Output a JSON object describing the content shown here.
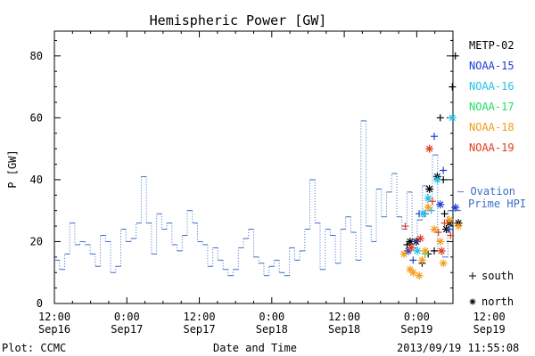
{
  "chart_data": {
    "type": "line",
    "title": "Hemispheric Power [GW]",
    "xlabel": "Date and Time",
    "ylabel": "P [GW]",
    "ylim": [
      0,
      88
    ],
    "xlim_hours": [
      0,
      66
    ],
    "y_ticks": [
      0,
      20,
      40,
      60,
      80
    ],
    "x_ticks": [
      {
        "h": 0,
        "time": "12:00",
        "date": "Sep16"
      },
      {
        "h": 12,
        "time": "0:00",
        "date": "Sep17"
      },
      {
        "h": 24,
        "time": "12:00",
        "date": "Sep17"
      },
      {
        "h": 36,
        "time": "0:00",
        "date": "Sep18"
      },
      {
        "h": 48,
        "time": "12:00",
        "date": "Sep18"
      },
      {
        "h": 60,
        "time": "0:00",
        "date": "Sep19"
      },
      {
        "h": 72,
        "time": "12:00",
        "date": "Sep19"
      }
    ],
    "ovation": {
      "name_line1": "— Ovation",
      "name_line2": "Prime HPI",
      "color": "#3b6fc9",
      "y": [
        14,
        11,
        16,
        26,
        19,
        20,
        19,
        16,
        12,
        22,
        20,
        10,
        12,
        24,
        20,
        21,
        26,
        41,
        26,
        16,
        29,
        24,
        26,
        19,
        17,
        22,
        30,
        26,
        20,
        19,
        12,
        18,
        14,
        11,
        9,
        11,
        18,
        21,
        24,
        15,
        13,
        9,
        12,
        14,
        10,
        9,
        18,
        14,
        17,
        24,
        40,
        26,
        11,
        24,
        22,
        13,
        24,
        28,
        23,
        14,
        59,
        25,
        20,
        37,
        28,
        36,
        42,
        28,
        24,
        36,
        18,
        27,
        38,
        30,
        48,
        17,
        15,
        30
      ]
    },
    "series": [
      {
        "name": "METP-02",
        "color": "#000000",
        "points": [
          [
            58.4,
            19,
            "+"
          ],
          [
            58.9,
            20,
            "*"
          ],
          [
            59.9,
            20,
            "*"
          ],
          [
            60.9,
            13,
            "+"
          ],
          [
            61.9,
            16,
            "+"
          ],
          [
            62.1,
            37,
            "*"
          ],
          [
            62.9,
            17,
            "+"
          ],
          [
            63.4,
            41,
            "*"
          ],
          [
            63.9,
            60,
            "+"
          ],
          [
            64.4,
            40,
            "+"
          ],
          [
            64.6,
            29,
            "+"
          ],
          [
            64.9,
            24,
            "*"
          ],
          [
            65.4,
            26,
            "*"
          ],
          [
            65.9,
            70,
            "+"
          ],
          [
            66.4,
            80,
            "+"
          ],
          [
            66.9,
            26,
            "*"
          ]
        ]
      },
      {
        "name": "NOAA-15",
        "color": "#1c3bd6",
        "points": [
          [
            58.6,
            17,
            "*"
          ],
          [
            59.4,
            14,
            "+"
          ],
          [
            59.9,
            20,
            "+"
          ],
          [
            60.4,
            29,
            "+"
          ],
          [
            61.4,
            29,
            "+"
          ],
          [
            62.9,
            54,
            "+"
          ],
          [
            63.9,
            32,
            "*"
          ],
          [
            64.4,
            43,
            "+"
          ],
          [
            65.4,
            24,
            "+"
          ],
          [
            66.4,
            31,
            "*"
          ]
        ]
      },
      {
        "name": "NOAA-16",
        "color": "#22c2e4",
        "points": [
          [
            60.1,
            17,
            "*"
          ],
          [
            61.1,
            29,
            "*"
          ],
          [
            61.9,
            34,
            "*"
          ],
          [
            62.4,
            30,
            "+"
          ],
          [
            63.4,
            40,
            "*"
          ],
          [
            65.9,
            60,
            "*"
          ]
        ]
      },
      {
        "name": "NOAA-17",
        "color": "#22dd66",
        "points": [
          [
            61.4,
            16,
            "+"
          ]
        ]
      },
      {
        "name": "NOAA-18",
        "color": "#f39c18",
        "points": [
          [
            57.9,
            16,
            "*"
          ],
          [
            58.9,
            11,
            "*"
          ],
          [
            59.4,
            10,
            "*"
          ],
          [
            60.4,
            9,
            "*"
          ],
          [
            60.9,
            14,
            "*"
          ],
          [
            61.4,
            17,
            "*"
          ],
          [
            61.9,
            31,
            "*"
          ],
          [
            62.9,
            24,
            "*"
          ],
          [
            63.9,
            20,
            "*"
          ],
          [
            64.4,
            13,
            "*"
          ],
          [
            65.4,
            27,
            "*"
          ],
          [
            66.9,
            25,
            "*"
          ]
        ]
      },
      {
        "name": "NOAA-19",
        "color": "#e23b1e",
        "points": [
          [
            58.1,
            25,
            "+"
          ],
          [
            59.1,
            18,
            "*"
          ],
          [
            60.6,
            21,
            "*"
          ],
          [
            62.1,
            50,
            "*"
          ],
          [
            62.6,
            33,
            "+"
          ],
          [
            63.6,
            23,
            "+"
          ],
          [
            64.1,
            17,
            "*"
          ],
          [
            64.6,
            26,
            "+"
          ],
          [
            65.6,
            22,
            "+"
          ]
        ]
      }
    ],
    "marker_legend": [
      {
        "symbol": "+",
        "label": "south"
      },
      {
        "symbol": "*",
        "label": "north"
      }
    ],
    "grid": false,
    "legend_position": "right"
  },
  "footer": {
    "plot_credit": "Plot: CCMC",
    "timestamp": "2013/09/19 11:55:08"
  }
}
